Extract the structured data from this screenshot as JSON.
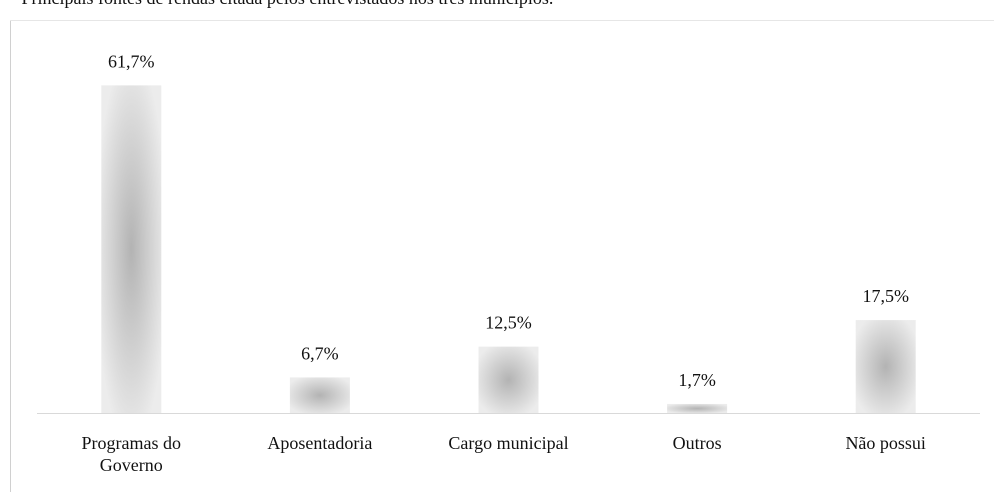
{
  "chart_data": {
    "type": "bar",
    "title": "– Principais fontes de rendas citada pelos entrevistados nos três municípios.",
    "categories": [
      "Programas do Governo",
      "Aposentadoria",
      "Cargo municipal",
      "Outros",
      "Não possui"
    ],
    "values": [
      61.7,
      6.7,
      12.5,
      1.7,
      17.5
    ],
    "value_labels": [
      "61,7%",
      "6,7%",
      "12,5%",
      "1,7%",
      "17,5%"
    ]
  }
}
